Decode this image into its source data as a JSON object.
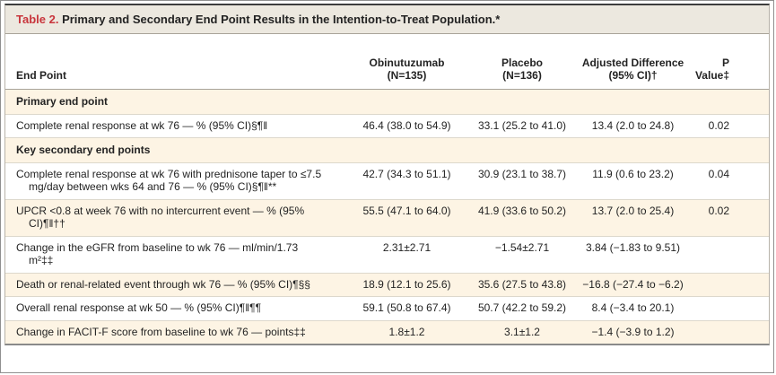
{
  "table": {
    "title_label": "Table 2.",
    "title_text": " Primary and Secondary End Point Results in the Intention-to-Treat Population.*",
    "columns": {
      "endpoint": "End Point",
      "obinutuzumab": "Obinutuzumab\n(N=135)",
      "placebo": "Placebo\n(N=136)",
      "adjusted_difference": "Adjusted Difference\n(95% CI)†",
      "p_value": "P Value‡"
    },
    "rows": [
      {
        "type": "section",
        "label": "Primary end point"
      },
      {
        "type": "data",
        "label": "Complete renal response at wk 76 — % (95% CI)§¶‖",
        "obinutuzumab": "46.4 (38.0 to 54.9)",
        "placebo": "33.1 (25.2 to 41.0)",
        "adjusted_difference": "13.4 (2.0 to 24.8)",
        "p_value": "0.02"
      },
      {
        "type": "section",
        "label": "Key secondary end points"
      },
      {
        "type": "data",
        "label": "Complete renal response at wk 76 with prednisone taper to ≤7.5 mg/day between wks 64 and 76 — % (95% CI)§¶‖**",
        "obinutuzumab": "42.7 (34.3 to 51.1)",
        "placebo": "30.9 (23.1 to 38.7)",
        "adjusted_difference": "11.9 (0.6 to 23.2)",
        "p_value": "0.04"
      },
      {
        "type": "data",
        "label": "UPCR <0.8 at week 76 with no intercurrent event — % (95% CI)¶‖††",
        "obinutuzumab": "55.5 (47.1 to 64.0)",
        "placebo": "41.9 (33.6 to 50.2)",
        "adjusted_difference": "13.7 (2.0 to 25.4)",
        "p_value": "0.02"
      },
      {
        "type": "data",
        "label": "Change in the eGFR from baseline to wk 76 — ml/min/1.73 m²‡‡",
        "obinutuzumab": "2.31±2.71",
        "placebo": "−1.54±2.71",
        "adjusted_difference": "3.84 (−1.83 to 9.51)",
        "p_value": ""
      },
      {
        "type": "data",
        "label": "Death or renal-related event through wk 76 — % (95% CI)¶§§",
        "obinutuzumab": "18.9 (12.1 to 25.6)",
        "placebo": "35.6 (27.5 to 43.8)",
        "adjusted_difference": "−16.8 (−27.4 to −6.2)",
        "p_value": ""
      },
      {
        "type": "data",
        "label": "Overall renal response at wk 50 — % (95% CI)¶‖¶¶",
        "obinutuzumab": "59.1 (50.8 to 67.4)",
        "placebo": "50.7 (42.2 to 59.2)",
        "adjusted_difference": "8.4 (−3.4 to 20.1)",
        "p_value": ""
      },
      {
        "type": "data",
        "label": "Change in FACIT-F score from baseline to wk 76 — points‡‡",
        "obinutuzumab": "1.8±1.2",
        "placebo": "3.1±1.2",
        "adjusted_difference": "−1.4 (−3.9 to 1.2)",
        "p_value": ""
      }
    ]
  },
  "colors": {
    "accent_red": "#c8353c",
    "row_highlight_cream": "#fdf4e4",
    "title_bar_bg": "#ece8df",
    "text": "#232323"
  }
}
